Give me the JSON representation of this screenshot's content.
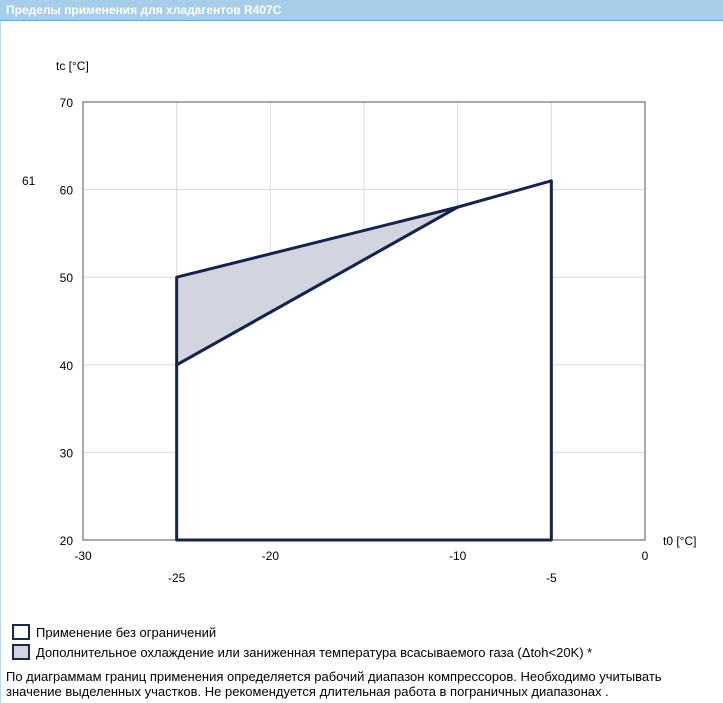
{
  "header": {
    "title": "Пределы применения для хладагентов R407C"
  },
  "chart_data": {
    "type": "area",
    "xlabel": "t0 [°C]",
    "ylabel": "tc [°C]",
    "xlim": [
      -30,
      0
    ],
    "ylim": [
      20,
      70
    ],
    "x_ticks": [
      -30,
      -20,
      -10,
      0
    ],
    "x_ticks_lower": [
      -25,
      -5
    ],
    "y_ticks": [
      20,
      30,
      40,
      50,
      60,
      70
    ],
    "y_extra_labels": [
      61
    ],
    "grid": true,
    "series": [
      {
        "name": "Применение без ограничений",
        "fill": "#ffffff",
        "points": [
          [
            -25,
            20
          ],
          [
            -25,
            40
          ],
          [
            -10,
            58
          ],
          [
            -5,
            61
          ],
          [
            -5,
            20
          ]
        ]
      },
      {
        "name": "Дополнительное охлаждение или заниженная температура всасываемого газа (Δtoh<20K) *",
        "fill": "#d2d5df",
        "points": [
          [
            -25,
            40
          ],
          [
            -25,
            50
          ],
          [
            -10,
            58
          ]
        ]
      }
    ]
  },
  "legend": {
    "items": [
      {
        "label": "Применение без ограничений",
        "color": "#ffffff"
      },
      {
        "label": "Дополнительное охлаждение или заниженная температура всасываемого газа (Δtoh<20K) *",
        "color": "#d2d5df"
      }
    ]
  },
  "note": {
    "text": "По диаграммам границ применения определяется рабочий диапазон компрессоров. Необходимо учитывать значение выделенных участков. Не рекомендуется длительная работа в пограничных диапазонах ."
  }
}
